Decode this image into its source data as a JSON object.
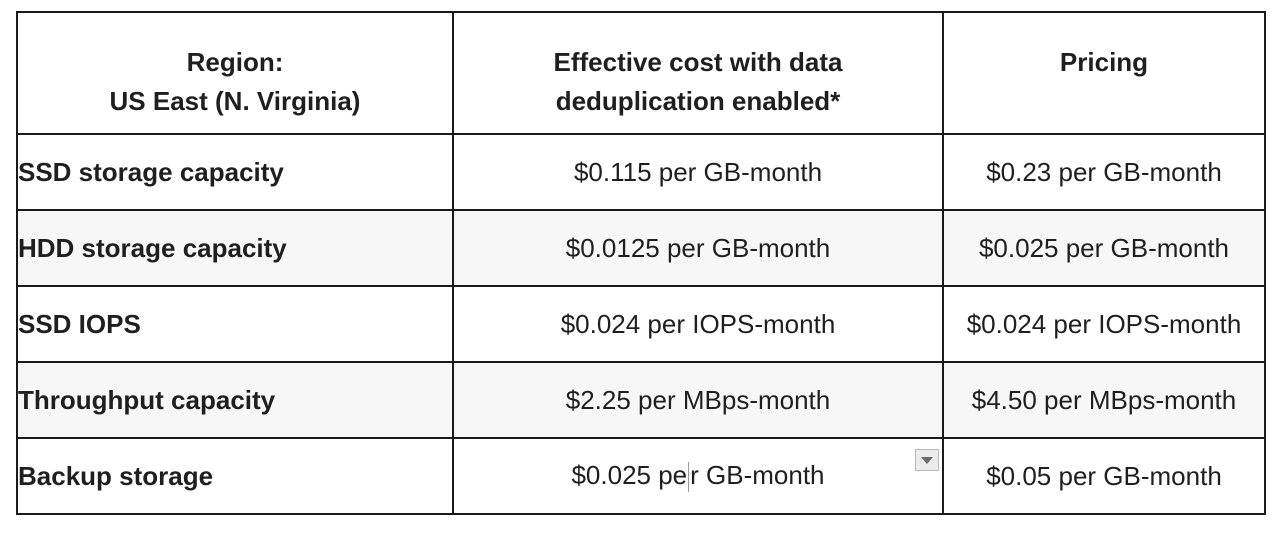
{
  "table": {
    "headers": {
      "region_line1": "Region:",
      "region_line2": "US East (N. Virginia)",
      "effective_line1": "Effective cost with data",
      "effective_line2": "deduplication enabled*",
      "pricing": "Pricing"
    },
    "rows": [
      {
        "label": "SSD storage capacity",
        "effective": "$0.115 per GB-month",
        "pricing": "$0.23 per GB-month"
      },
      {
        "label": "HDD storage capacity",
        "effective": "$0.0125 per GB-month",
        "pricing": "$0.025 per GB-month"
      },
      {
        "label": "SSD IOPS",
        "effective": "$0.024 per IOPS-month",
        "pricing": "$0.024 per IOPS-month"
      },
      {
        "label": "Throughput capacity",
        "effective": "$2.25 per MBps-month",
        "pricing": "$4.50 per MBps-month"
      },
      {
        "label": "Backup storage",
        "effective_part1": "$0.025 pe",
        "effective_part2": "r GB-month",
        "pricing": "$0.05 per GB-month"
      }
    ]
  },
  "icons": {
    "cell_menu": "chevron-down-icon"
  },
  "colors": {
    "border": "#1a1a1a",
    "shaded_row": "#f7f7f7",
    "text": "#1f1f1f"
  }
}
